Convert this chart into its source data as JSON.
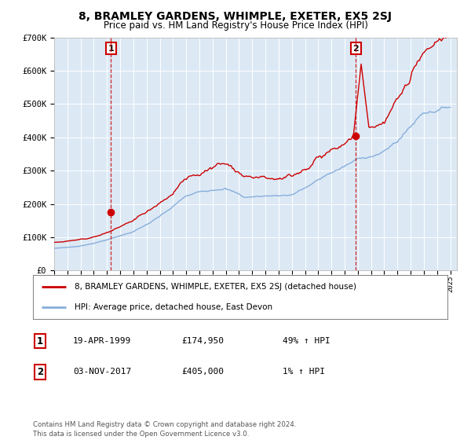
{
  "title": "8, BRAMLEY GARDENS, WHIMPLE, EXETER, EX5 2SJ",
  "subtitle": "Price paid vs. HM Land Registry's House Price Index (HPI)",
  "background_color": "#ffffff",
  "plot_bg_color": "#dce9f5",
  "hpi_color": "#87AEDB",
  "price_color": "#cc0000",
  "marker_color": "#cc0000",
  "vline_color": "#cc0000",
  "grid_color": "#ffffff",
  "ylim": [
    0,
    700000
  ],
  "yticks": [
    0,
    100000,
    200000,
    300000,
    400000,
    500000,
    600000,
    700000
  ],
  "ytick_labels": [
    "£0",
    "£100K",
    "£200K",
    "£300K",
    "£400K",
    "£500K",
    "£600K",
    "£700K"
  ],
  "sale1_date": 1999.3,
  "sale1_price": 174950,
  "sale1_label": "1",
  "sale2_date": 2017.84,
  "sale2_price": 405000,
  "sale2_label": "2",
  "legend_line1": "8, BRAMLEY GARDENS, WHIMPLE, EXETER, EX5 2SJ (detached house)",
  "legend_line2": "HPI: Average price, detached house, East Devon",
  "info1_num": "1",
  "info1_date": "19-APR-1999",
  "info1_price": "£174,950",
  "info1_hpi": "49% ↑ HPI",
  "info2_num": "2",
  "info2_date": "03-NOV-2017",
  "info2_price": "£405,000",
  "info2_hpi": "1% ↑ HPI",
  "footer": "Contains HM Land Registry data © Crown copyright and database right 2024.\nThis data is licensed under the Open Government Licence v3.0."
}
